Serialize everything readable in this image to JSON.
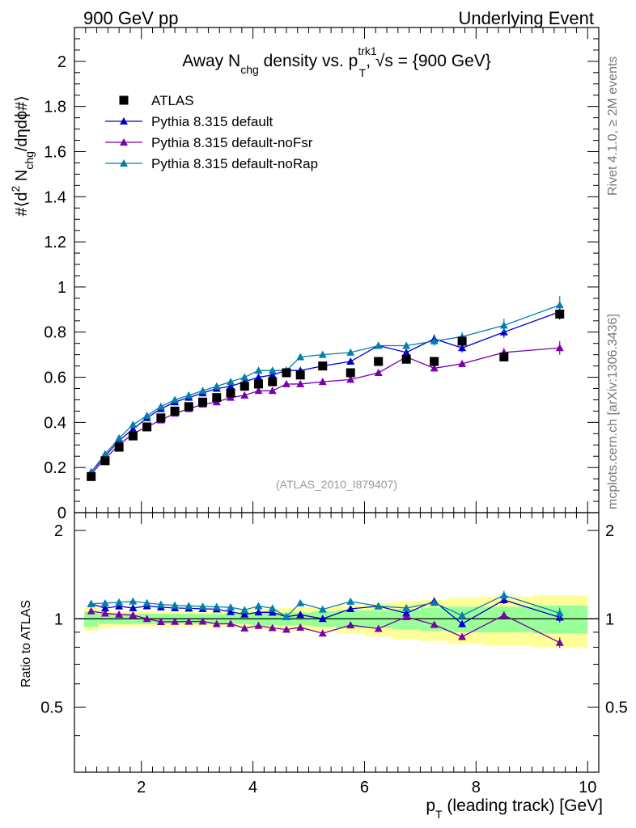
{
  "header": {
    "left": "900 GeV pp",
    "right": "Underlying Event"
  },
  "side": {
    "rivet": "Rivet 4.1.0, ≥ 2M events",
    "mcplots": "mcplots.cern.ch [arXiv:1306.3436]"
  },
  "title": {
    "p1": "Away N",
    "p1sub": "chg",
    "p2": " density vs. p",
    "p2sup": "trk1",
    "p2sub": "T",
    "p3": ", √s = {900 GeV}"
  },
  "watermark": "(ATLAS_2010_I879407)",
  "ylabel": {
    "a": "#⟨d",
    "sup2": "2",
    "b": " N",
    "sub": "chg",
    "c": "/dηdϕ#⟩"
  },
  "ratio_ylabel": "Ratio to ATLAS",
  "xlabel": {
    "p": "p",
    "sub": "T",
    "rest": " (leading track) [GeV]"
  },
  "chart_data": {
    "type": "scatter",
    "xlim": [
      0.8,
      10.2
    ],
    "ylim": [
      0,
      2.15
    ],
    "ratio_ylim": [
      0.3,
      2.3
    ],
    "x_ticks": [
      "2",
      "4",
      "6",
      "8",
      "10"
    ],
    "y_ticks": [
      "0",
      "0.2",
      "0.4",
      "0.6",
      "0.8",
      "1",
      "1.2",
      "1.4",
      "1.6",
      "1.8",
      "2"
    ],
    "ratio_ticks": [
      "0.5",
      "1",
      "2"
    ],
    "x": [
      1.1,
      1.35,
      1.6,
      1.85,
      2.1,
      2.35,
      2.6,
      2.85,
      3.1,
      3.35,
      3.6,
      3.85,
      4.1,
      4.35,
      4.6,
      4.85,
      5.25,
      5.75,
      6.25,
      6.75,
      7.25,
      7.75,
      8.5,
      9.5
    ],
    "data": {
      "name": "ATLAS",
      "color": "#000000",
      "values": [
        0.16,
        0.23,
        0.29,
        0.34,
        0.38,
        0.42,
        0.45,
        0.47,
        0.49,
        0.51,
        0.53,
        0.56,
        0.57,
        0.58,
        0.62,
        0.61,
        0.65,
        0.62,
        0.67,
        0.68,
        0.67,
        0.76,
        0.69,
        0.88
      ],
      "band_inner": [
        0.06,
        0.04,
        0.04,
        0.04,
        0.04,
        0.04,
        0.04,
        0.04,
        0.04,
        0.04,
        0.04,
        0.04,
        0.05,
        0.05,
        0.05,
        0.05,
        0.06,
        0.07,
        0.07,
        0.08,
        0.09,
        0.1,
        0.1,
        0.11
      ],
      "band_outer": [
        0.09,
        0.07,
        0.06,
        0.06,
        0.06,
        0.06,
        0.06,
        0.06,
        0.06,
        0.06,
        0.06,
        0.07,
        0.08,
        0.08,
        0.09,
        0.09,
        0.09,
        0.11,
        0.13,
        0.15,
        0.16,
        0.18,
        0.19,
        0.2
      ]
    },
    "series": [
      {
        "name": "Pythia 8.315 default",
        "color": "#0000cc",
        "values": [
          0.18,
          0.25,
          0.32,
          0.37,
          0.42,
          0.46,
          0.49,
          0.51,
          0.53,
          0.55,
          0.56,
          0.58,
          0.6,
          0.61,
          0.63,
          0.63,
          0.65,
          0.67,
          0.74,
          0.71,
          0.77,
          0.73,
          0.8,
          0.89
        ],
        "errors": [
          0,
          0,
          0,
          0,
          0,
          0,
          0,
          0,
          0,
          0,
          0,
          0,
          0,
          0,
          0,
          0,
          0,
          0,
          0.01,
          0.01,
          0.02,
          0.02,
          0.025,
          0.035
        ]
      },
      {
        "name": "Pythia 8.315 default-noFsr",
        "color": "#7a00aa",
        "values": [
          0.17,
          0.24,
          0.3,
          0.35,
          0.38,
          0.41,
          0.44,
          0.46,
          0.48,
          0.49,
          0.51,
          0.52,
          0.54,
          0.54,
          0.57,
          0.57,
          0.58,
          0.59,
          0.62,
          0.69,
          0.64,
          0.66,
          0.71,
          0.73
        ],
        "errors": [
          0,
          0,
          0,
          0,
          0,
          0,
          0,
          0,
          0,
          0,
          0,
          0,
          0,
          0,
          0,
          0,
          0,
          0,
          0.01,
          0.01,
          0.015,
          0.015,
          0.02,
          0.03
        ]
      },
      {
        "name": "Pythia 8.315 default-noRap",
        "color": "#0080aa",
        "values": [
          0.18,
          0.26,
          0.33,
          0.39,
          0.43,
          0.47,
          0.5,
          0.52,
          0.54,
          0.56,
          0.58,
          0.6,
          0.63,
          0.63,
          0.63,
          0.69,
          0.7,
          0.71,
          0.74,
          0.74,
          0.76,
          0.78,
          0.83,
          0.92
        ],
        "errors": [
          0,
          0,
          0,
          0,
          0,
          0,
          0,
          0,
          0,
          0,
          0,
          0,
          0,
          0,
          0,
          0,
          0,
          0,
          0.01,
          0.015,
          0.02,
          0.02,
          0.03,
          0.04
        ]
      }
    ]
  }
}
